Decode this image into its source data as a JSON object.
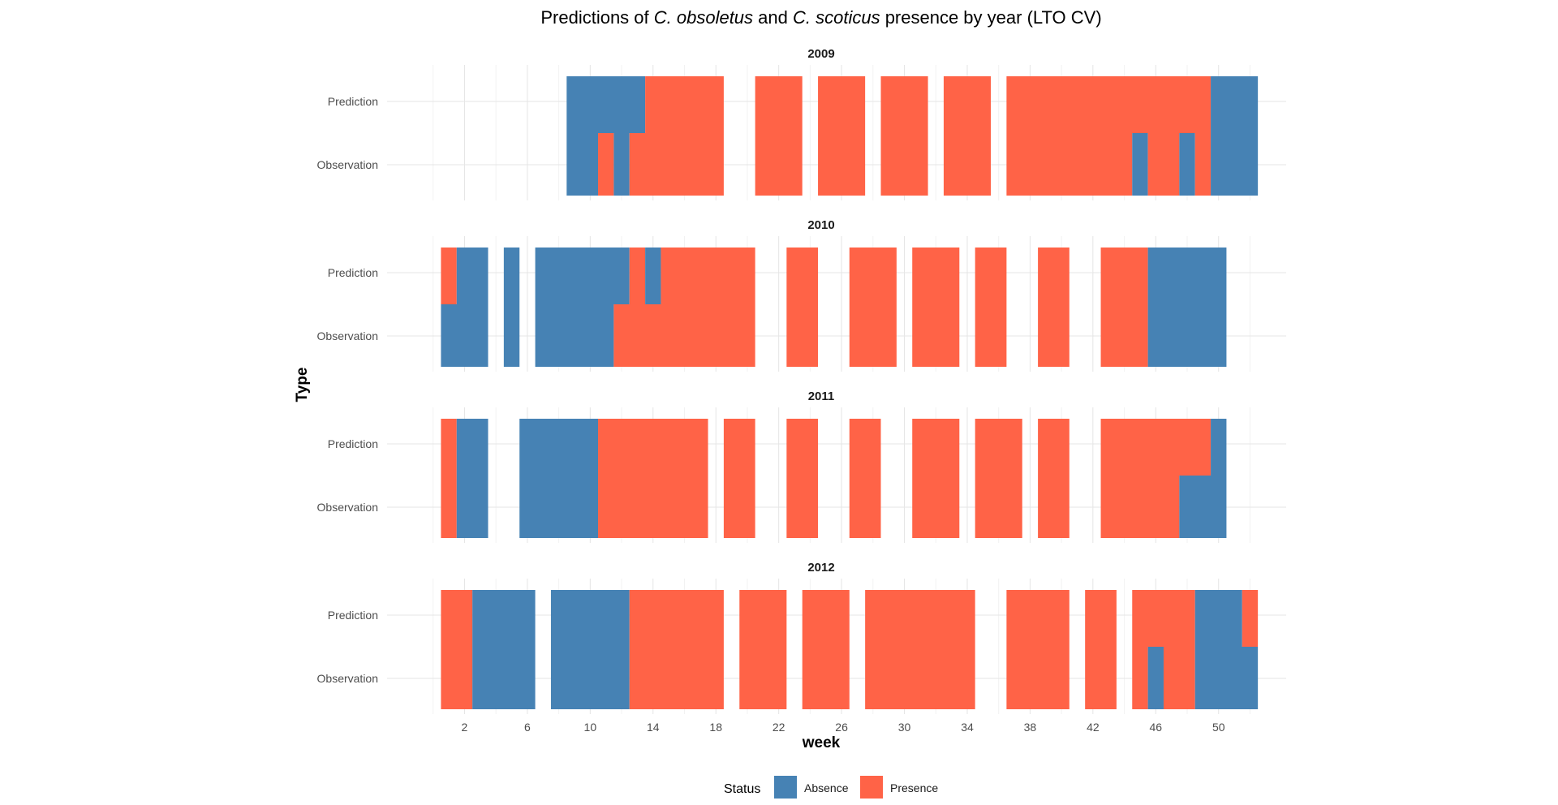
{
  "chart_data": {
    "type": "heatmap",
    "title_parts": [
      {
        "text": "Predictions of ",
        "italic": false
      },
      {
        "text": "C. obsoletus",
        "italic": true
      },
      {
        "text": " and ",
        "italic": false
      },
      {
        "text": "C. scoticus",
        "italic": true
      },
      {
        "text": " presence by year (LTO CV)",
        "italic": false
      }
    ],
    "xlabel": "week",
    "ylabel": "Type",
    "xlim": [
      -1.5,
      54.5
    ],
    "xticks": [
      2,
      6,
      10,
      14,
      18,
      22,
      26,
      30,
      34,
      38,
      42,
      46,
      50
    ],
    "xtick_labels": [
      "2",
      "6",
      "10",
      "14",
      "18",
      "22",
      "26",
      "30",
      "34",
      "38",
      "42",
      "46",
      "50"
    ],
    "rows": [
      "Prediction",
      "Observation"
    ],
    "grid": true,
    "legend": {
      "title": "Status",
      "position": "bottom",
      "items": [
        {
          "label": "Absence",
          "color": "#4682B4"
        },
        {
          "label": "Presence",
          "color": "#FF6347"
        }
      ]
    },
    "colors": {
      "A": "#4682B4",
      "P": "#FF6347"
    },
    "panels": [
      {
        "year": "2009",
        "prediction": [
          [
            9,
            13,
            "A"
          ],
          [
            14,
            18,
            "P"
          ],
          [
            21,
            23,
            "P"
          ],
          [
            25,
            27,
            "P"
          ],
          [
            29,
            31,
            "P"
          ],
          [
            33,
            35,
            "P"
          ],
          [
            37,
            49,
            "P"
          ],
          [
            50,
            52,
            "A"
          ]
        ],
        "observation": [
          [
            9,
            10,
            "A"
          ],
          [
            11,
            11,
            "P"
          ],
          [
            12,
            12,
            "A"
          ],
          [
            13,
            18,
            "P"
          ],
          [
            21,
            23,
            "P"
          ],
          [
            25,
            27,
            "P"
          ],
          [
            29,
            31,
            "P"
          ],
          [
            33,
            35,
            "P"
          ],
          [
            37,
            44,
            "P"
          ],
          [
            45,
            45,
            "A"
          ],
          [
            46,
            47,
            "P"
          ],
          [
            48,
            48,
            "A"
          ],
          [
            49,
            49,
            "P"
          ],
          [
            50,
            52,
            "A"
          ]
        ]
      },
      {
        "year": "2010",
        "prediction": [
          [
            1,
            1,
            "P"
          ],
          [
            2,
            3,
            "A"
          ],
          [
            5,
            5,
            "A"
          ],
          [
            7,
            12,
            "A"
          ],
          [
            13,
            13,
            "P"
          ],
          [
            14,
            14,
            "A"
          ],
          [
            15,
            20,
            "P"
          ],
          [
            23,
            24,
            "P"
          ],
          [
            27,
            29,
            "P"
          ],
          [
            31,
            33,
            "P"
          ],
          [
            35,
            36,
            "P"
          ],
          [
            39,
            40,
            "P"
          ],
          [
            43,
            45,
            "P"
          ],
          [
            46,
            50,
            "A"
          ]
        ],
        "observation": [
          [
            1,
            3,
            "A"
          ],
          [
            5,
            5,
            "A"
          ],
          [
            7,
            11,
            "A"
          ],
          [
            12,
            20,
            "P"
          ],
          [
            23,
            24,
            "P"
          ],
          [
            27,
            29,
            "P"
          ],
          [
            31,
            33,
            "P"
          ],
          [
            35,
            36,
            "P"
          ],
          [
            39,
            40,
            "P"
          ],
          [
            43,
            45,
            "P"
          ],
          [
            46,
            50,
            "A"
          ]
        ]
      },
      {
        "year": "2011",
        "prediction": [
          [
            1,
            1,
            "P"
          ],
          [
            2,
            3,
            "A"
          ],
          [
            6,
            10,
            "A"
          ],
          [
            11,
            17,
            "P"
          ],
          [
            19,
            20,
            "P"
          ],
          [
            23,
            24,
            "P"
          ],
          [
            27,
            28,
            "P"
          ],
          [
            31,
            33,
            "P"
          ],
          [
            35,
            37,
            "P"
          ],
          [
            39,
            40,
            "P"
          ],
          [
            43,
            49,
            "P"
          ],
          [
            50,
            50,
            "A"
          ]
        ],
        "observation": [
          [
            1,
            1,
            "P"
          ],
          [
            2,
            3,
            "A"
          ],
          [
            6,
            10,
            "A"
          ],
          [
            11,
            17,
            "P"
          ],
          [
            19,
            20,
            "P"
          ],
          [
            23,
            24,
            "P"
          ],
          [
            27,
            28,
            "P"
          ],
          [
            31,
            33,
            "P"
          ],
          [
            35,
            37,
            "P"
          ],
          [
            39,
            40,
            "P"
          ],
          [
            43,
            47,
            "P"
          ],
          [
            48,
            50,
            "A"
          ]
        ]
      },
      {
        "year": "2012",
        "prediction": [
          [
            1,
            2,
            "P"
          ],
          [
            3,
            6,
            "A"
          ],
          [
            8,
            12,
            "A"
          ],
          [
            13,
            18,
            "P"
          ],
          [
            20,
            22,
            "P"
          ],
          [
            24,
            26,
            "P"
          ],
          [
            28,
            34,
            "P"
          ],
          [
            37,
            40,
            "P"
          ],
          [
            42,
            43,
            "P"
          ],
          [
            45,
            48,
            "P"
          ],
          [
            49,
            51,
            "A"
          ],
          [
            52,
            52,
            "P"
          ]
        ],
        "observation": [
          [
            1,
            2,
            "P"
          ],
          [
            3,
            6,
            "A"
          ],
          [
            8,
            12,
            "A"
          ],
          [
            13,
            18,
            "P"
          ],
          [
            20,
            22,
            "P"
          ],
          [
            24,
            26,
            "P"
          ],
          [
            28,
            34,
            "P"
          ],
          [
            37,
            40,
            "P"
          ],
          [
            42,
            43,
            "P"
          ],
          [
            45,
            45,
            "P"
          ],
          [
            46,
            46,
            "A"
          ],
          [
            47,
            48,
            "P"
          ],
          [
            49,
            52,
            "A"
          ]
        ]
      }
    ]
  }
}
